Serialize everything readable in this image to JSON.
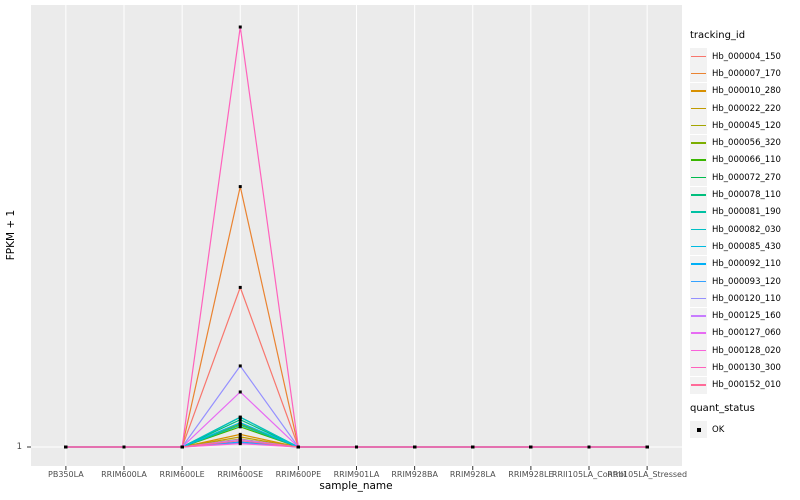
{
  "chart_data": {
    "type": "line",
    "title": "",
    "xlabel": "sample_name",
    "ylabel": "FPKM + 1",
    "y_tick_label": "1",
    "baseline_value": 1,
    "legend_position": "right",
    "grid": true,
    "categories": [
      "PB350LA",
      "RRIM600LA",
      "RRIM600LE",
      "RRIM600SE",
      "RRIM600PE",
      "RRIM901LA",
      "RRIM928BA",
      "RRIM928LA",
      "RRIM928LE",
      "RRII105LA_Control",
      "RRII105LA_Stressed"
    ],
    "spike_category": "RRIM600SE",
    "series_note": "all series are flat at FPKM+1 = 1 for every sample except RRIM600SE, where each spikes to the relative height peak_frac (1.0 = tallest spike)",
    "series": [
      {
        "name": "Hb_000004_150",
        "color": "#F8766D",
        "peak_frac": 0.38
      },
      {
        "name": "Hb_000007_170",
        "color": "#EA8331",
        "peak_frac": 0.62
      },
      {
        "name": "Hb_000010_280",
        "color": "#D89000",
        "peak_frac": 0.03
      },
      {
        "name": "Hb_000022_220",
        "color": "#C09B00",
        "peak_frac": 0.024
      },
      {
        "name": "Hb_000045_120",
        "color": "#A3A500",
        "peak_frac": 0.019
      },
      {
        "name": "Hb_000056_320",
        "color": "#7CAE00",
        "peak_frac": 0.055
      },
      {
        "name": "Hb_000066_110",
        "color": "#39B600",
        "peak_frac": 0.048
      },
      {
        "name": "Hb_000072_270",
        "color": "#00BB4E",
        "peak_frac": 0.071
      },
      {
        "name": "Hb_000078_110",
        "color": "#00BF7D",
        "peak_frac": 0.065
      },
      {
        "name": "Hb_000081_190",
        "color": "#00C1A3",
        "peak_frac": 0.052
      },
      {
        "name": "Hb_000082_030",
        "color": "#00BFC4",
        "peak_frac": 0.071
      },
      {
        "name": "Hb_000085_430",
        "color": "#00BAE0",
        "peak_frac": 0.058
      },
      {
        "name": "Hb_000092_110",
        "color": "#00B0F6",
        "peak_frac": 0.012
      },
      {
        "name": "Hb_000093_120",
        "color": "#35A2FF",
        "peak_frac": 0.01
      },
      {
        "name": "Hb_000120_110",
        "color": "#9590FF",
        "peak_frac": 0.193
      },
      {
        "name": "Hb_000125_160",
        "color": "#C77CFF",
        "peak_frac": 0.018
      },
      {
        "name": "Hb_000127_060",
        "color": "#E76BF3",
        "peak_frac": 0.131
      },
      {
        "name": "Hb_000128_020",
        "color": "#FA62DB",
        "peak_frac": 0.008
      },
      {
        "name": "Hb_000130_300",
        "color": "#FF62BC",
        "peak_frac": 1.0
      },
      {
        "name": "Hb_000152_010",
        "color": "#FF6A98",
        "peak_frac": 0.015
      }
    ],
    "colors": {
      "panel_bg": "#EBEBEB",
      "grid": "#FFFFFF",
      "point": "#000000",
      "axis_text": "#4D4D4D",
      "tick_mark": "#333333"
    }
  },
  "legend": {
    "tracking_title": "tracking_id",
    "quant_title": "quant_status",
    "quant_items": [
      {
        "label": "OK",
        "marker": "black-square"
      }
    ]
  }
}
